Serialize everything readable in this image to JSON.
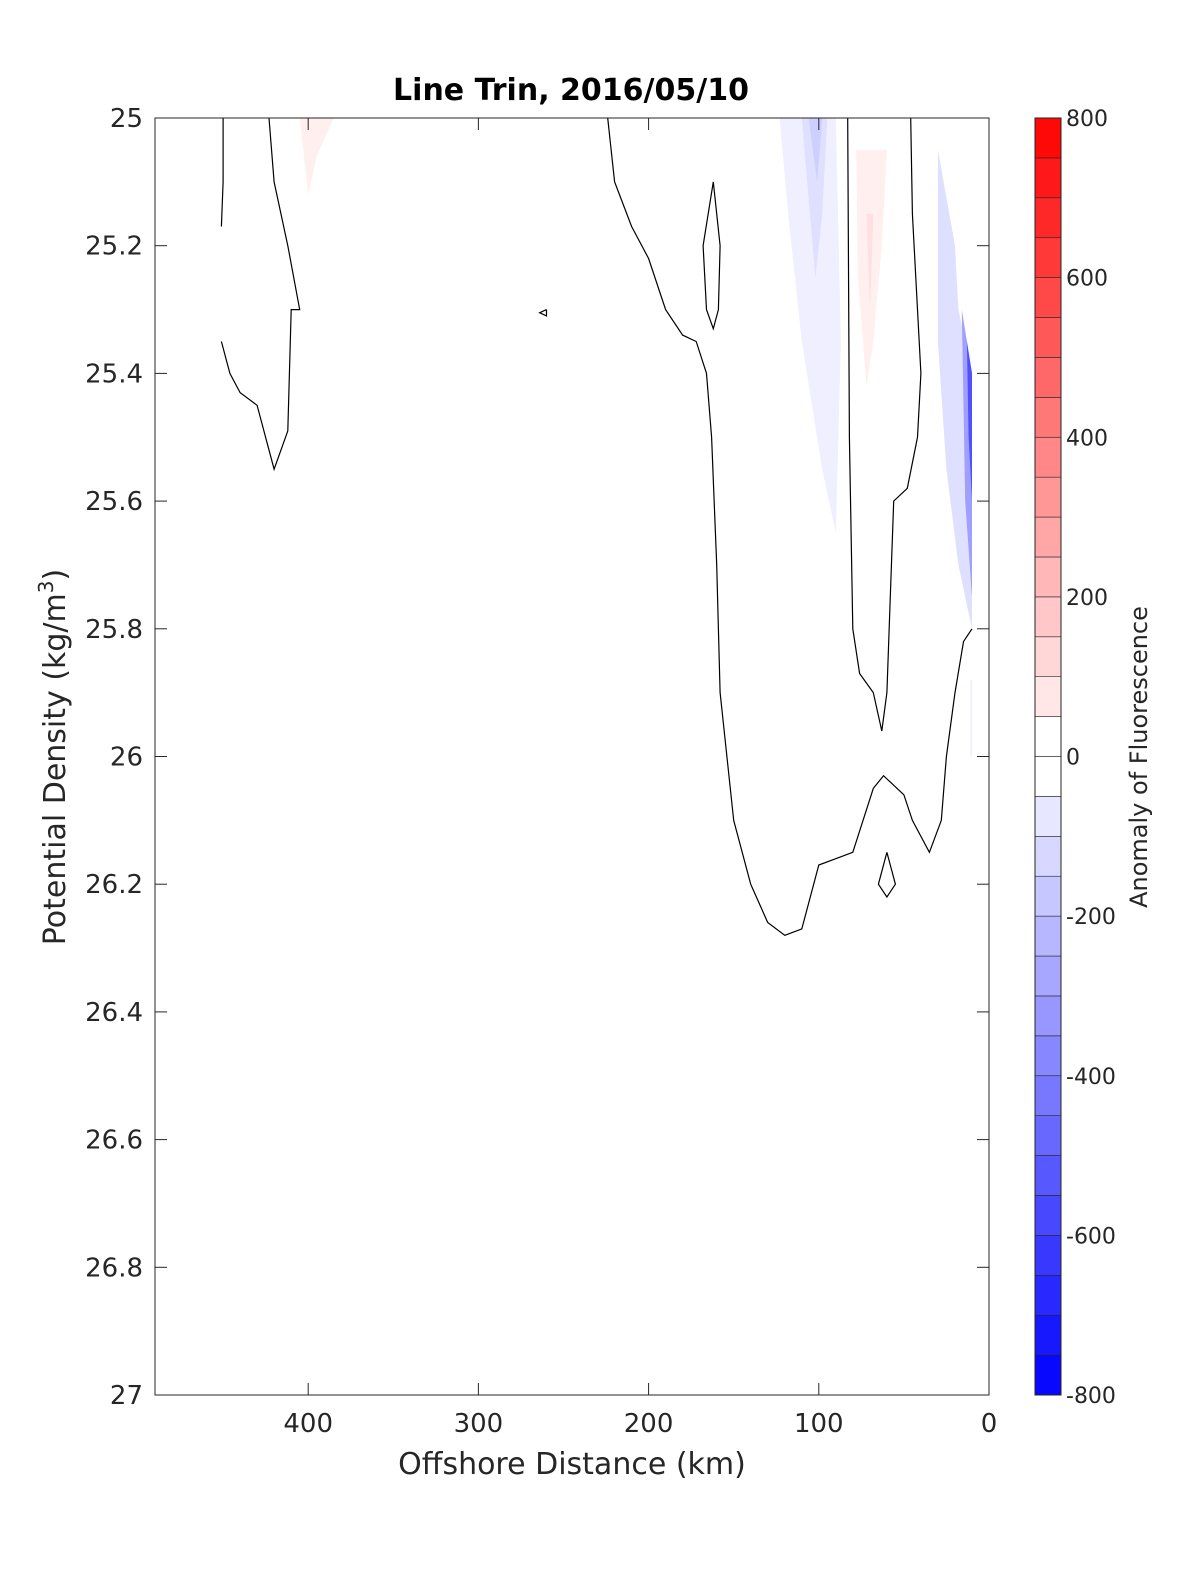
{
  "chart_data": {
    "type": "heatmap",
    "title": "Line Trin, 2016/05/10",
    "xlabel": "Offshore Distance (km)",
    "ylabel": "Potential Density (kg/m",
    "ylabel_sup": "3",
    "ylabel_suffix": ")",
    "xlim": [
      0,
      490
    ],
    "x_reversed": true,
    "ylim": [
      25,
      27
    ],
    "y_reversed": true,
    "grid": false,
    "xticks": [
      400,
      300,
      200,
      100,
      0
    ],
    "xtick_labels": [
      "400",
      "300",
      "200",
      "100",
      "0"
    ],
    "yticks": [
      25,
      25.2,
      25.4,
      25.6,
      25.8,
      26,
      26.2,
      26.4,
      26.6,
      26.8,
      27
    ],
    "ytick_labels": [
      "25",
      "25.2",
      "25.4",
      "25.6",
      "25.8",
      "26",
      "26.2",
      "26.4",
      "26.6",
      "26.8",
      "27"
    ],
    "colorbar": {
      "label": "Anomaly of Fluorescence",
      "min": -800,
      "max": 800,
      "step": 50,
      "low_color": "#0000ff",
      "mid_color": "#ffffff",
      "high_color": "#ff0000",
      "ticks": [
        800,
        600,
        400,
        200,
        0,
        -200,
        -400,
        -600,
        -800
      ],
      "tick_labels": [
        "800",
        "600",
        "400",
        "200",
        "0",
        "-200",
        "-400",
        "-600",
        "-800"
      ]
    },
    "anomaly_regions": [
      {
        "value": 50,
        "points": [
          [
            405,
            25
          ],
          [
            385,
            25
          ],
          [
            395,
            25.06
          ],
          [
            400,
            25.12
          ]
        ]
      },
      {
        "value": -50,
        "points": [
          [
            123,
            25
          ],
          [
            90,
            25
          ],
          [
            87,
            25.35
          ],
          [
            90,
            25.65
          ],
          [
            98,
            25.55
          ],
          [
            110,
            25.35
          ],
          [
            118,
            25.15
          ]
        ]
      },
      {
        "value": -100,
        "points": [
          [
            110,
            25
          ],
          [
            95,
            25
          ],
          [
            98,
            25.15
          ],
          [
            102,
            25.25
          ]
        ]
      },
      {
        "value": -150,
        "points": [
          [
            106,
            25
          ],
          [
            98,
            25
          ],
          [
            101,
            25.1
          ]
        ]
      },
      {
        "value": 50,
        "points": [
          [
            78,
            25.05
          ],
          [
            60,
            25.05
          ],
          [
            63,
            25.2
          ],
          [
            68,
            25.35
          ],
          [
            72,
            25.42
          ],
          [
            77,
            25.25
          ]
        ]
      },
      {
        "value": 100,
        "points": [
          [
            72,
            25.15
          ],
          [
            68,
            25.15
          ],
          [
            70,
            25.3
          ]
        ]
      },
      {
        "value": -100,
        "points": [
          [
            30,
            25.05
          ],
          [
            20,
            25.2
          ],
          [
            18,
            25.3
          ],
          [
            10,
            25.4
          ],
          [
            10,
            25.8
          ],
          [
            18,
            25.7
          ],
          [
            25,
            25.55
          ],
          [
            30,
            25.35
          ]
        ]
      },
      {
        "value": -300,
        "points": [
          [
            16,
            25.3
          ],
          [
            10,
            25.4
          ],
          [
            10,
            25.75
          ],
          [
            14,
            25.6
          ]
        ]
      },
      {
        "value": -550,
        "points": [
          [
            13,
            25.35
          ],
          [
            10,
            25.4
          ],
          [
            10,
            25.6
          ],
          [
            12,
            25.5
          ]
        ]
      },
      {
        "value": -50,
        "points": [
          [
            11,
            25.88
          ],
          [
            10,
            25.88
          ],
          [
            10,
            26.0
          ],
          [
            11,
            26.0
          ]
        ]
      }
    ],
    "contour_lines": [
      [
        [
          450,
          25
        ],
        [
          450,
          25.1
        ],
        [
          451,
          25.17
        ]
      ],
      [
        [
          451,
          25.35
        ],
        [
          446,
          25.4
        ],
        [
          440,
          25.43
        ],
        [
          430,
          25.45
        ],
        [
          420,
          25.55
        ],
        [
          412,
          25.49
        ],
        [
          410,
          25.3
        ],
        [
          410,
          25.3
        ],
        [
          405,
          25.3
        ],
        [
          412,
          25.2
        ],
        [
          420,
          25.1
        ],
        [
          423,
          25
        ]
      ],
      [
        [
          224,
          25
        ],
        [
          220,
          25.1
        ],
        [
          210,
          25.17
        ],
        [
          200,
          25.22
        ],
        [
          190,
          25.3
        ],
        [
          180,
          25.34
        ],
        [
          172,
          25.35
        ],
        [
          166,
          25.4
        ],
        [
          163,
          25.5
        ],
        [
          160,
          25.7
        ],
        [
          158,
          25.9
        ],
        [
          150,
          26.1
        ],
        [
          140,
          26.2
        ],
        [
          130,
          26.26
        ],
        [
          120,
          26.28
        ],
        [
          110,
          26.27
        ],
        [
          100,
          26.17
        ],
        [
          90,
          26.16
        ],
        [
          80,
          26.15
        ],
        [
          68,
          26.05
        ],
        [
          62,
          26.03
        ],
        [
          50,
          26.06
        ],
        [
          45,
          26.1
        ],
        [
          35,
          26.15
        ],
        [
          28,
          26.1
        ],
        [
          25,
          26.0
        ],
        [
          20,
          25.9
        ],
        [
          15,
          25.82
        ],
        [
          10,
          25.8
        ]
      ],
      [
        [
          162,
          25.1
        ],
        [
          158,
          25.2
        ],
        [
          159,
          25.3
        ],
        [
          162,
          25.33
        ],
        [
          166,
          25.3
        ],
        [
          168,
          25.2
        ],
        [
          162,
          25.1
        ]
      ],
      [
        [
          260,
          25.3
        ],
        [
          264,
          25.305
        ],
        [
          260,
          25.31
        ],
        [
          260,
          25.3
        ]
      ],
      [
        [
          83,
          25
        ],
        [
          82,
          25.5
        ],
        [
          80,
          25.8
        ],
        [
          76,
          25.87
        ],
        [
          68,
          25.9
        ],
        [
          63,
          25.96
        ],
        [
          60,
          25.9
        ],
        [
          56,
          25.6
        ],
        [
          48,
          25.58
        ],
        [
          42,
          25.5
        ],
        [
          40,
          25.4
        ],
        [
          42,
          25.3
        ],
        [
          45,
          25.15
        ],
        [
          46,
          25
        ]
      ],
      [
        [
          60,
          26.15
        ],
        [
          55,
          26.2
        ],
        [
          60,
          26.22
        ],
        [
          65,
          26.2
        ],
        [
          60,
          26.15
        ]
      ]
    ]
  }
}
